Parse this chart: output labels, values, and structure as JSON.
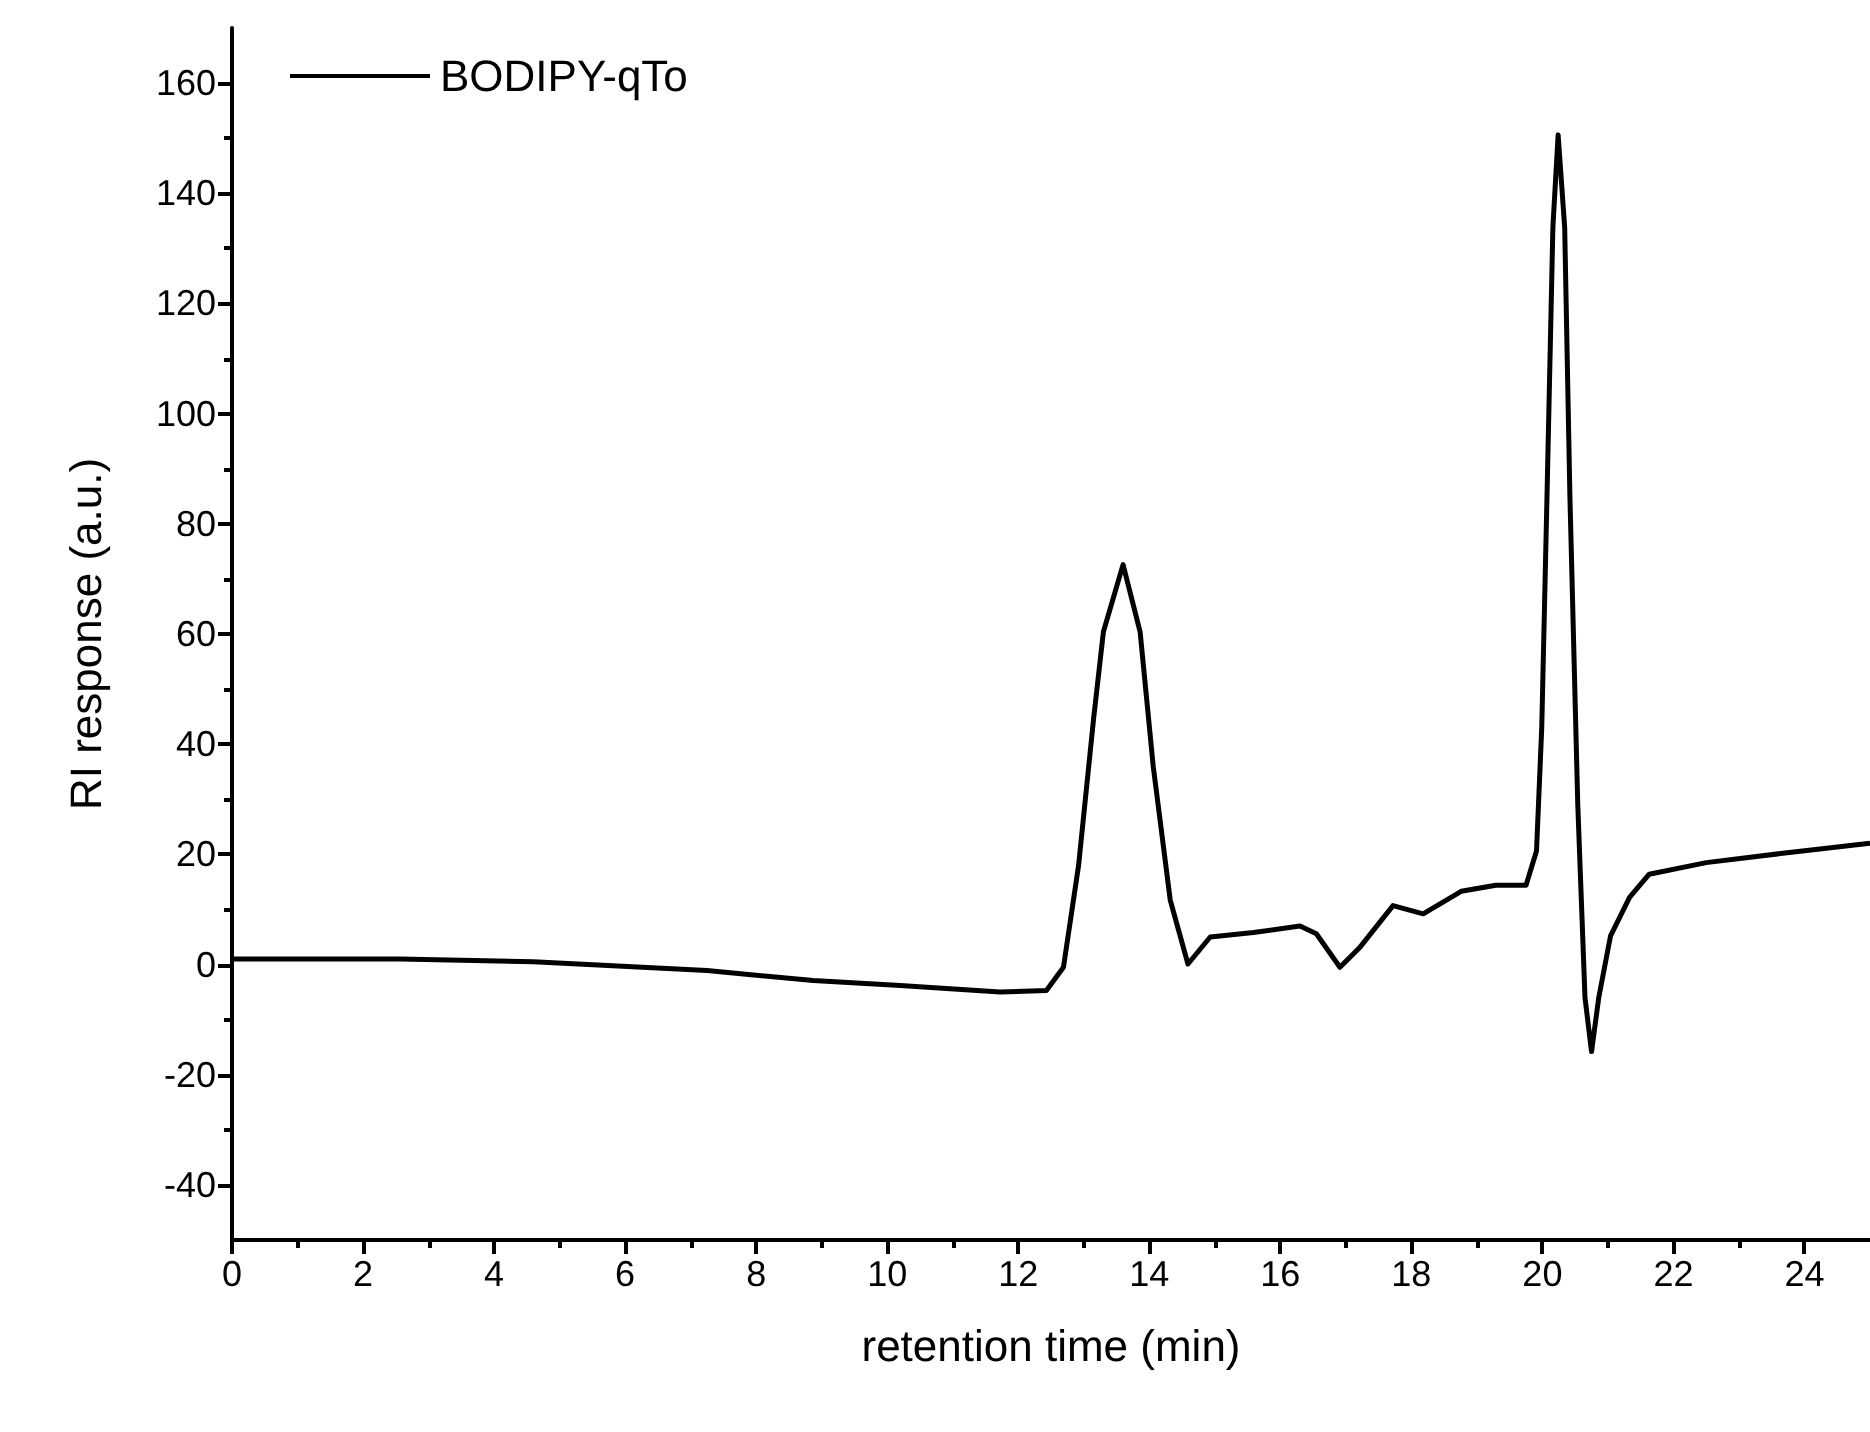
{
  "chart_data": {
    "type": "line",
    "xlabel": "retention time (min)",
    "ylabel": "RI response (a.u.)",
    "xlim": [
      0,
      25
    ],
    "xticks": [
      0,
      2,
      4,
      6,
      8,
      10,
      12,
      14,
      16,
      18,
      20,
      22,
      24
    ],
    "ylim": [
      -50,
      170
    ],
    "yticks": [
      -40,
      -20,
      0,
      20,
      40,
      60,
      80,
      100,
      120,
      140,
      160
    ],
    "grid": false,
    "legend": "top left",
    "marker": "none",
    "line_style": "solid",
    "series": [
      {
        "name": "BODIPY-qTo",
        "color": "#000000",
        "x": [
          0,
          2.56,
          4.6,
          7.25,
          8.87,
          10.2,
          11.72,
          12.43,
          12.69,
          12.92,
          13.15,
          13.3,
          13.6,
          13.86,
          14.06,
          14.32,
          14.59,
          14.93,
          15.59,
          16.3,
          16.55,
          16.91,
          17.22,
          17.72,
          18.18,
          18.76,
          19.29,
          19.75,
          19.91,
          19.99,
          20.07,
          20.16,
          20.24,
          20.34,
          20.42,
          20.54,
          20.65,
          20.75,
          20.86,
          21.04,
          21.33,
          21.63,
          22.5,
          23.67,
          25
        ],
        "values": [
          1,
          1,
          0.5,
          -1.1,
          -2.9,
          -3.8,
          -5,
          -4.7,
          -0.5,
          17.9,
          44.6,
          60.4,
          72.6,
          60.4,
          36,
          11.7,
          0.1,
          5,
          5.8,
          7,
          5.6,
          -0.5,
          3.2,
          10.7,
          9.2,
          13.3,
          14.4,
          14.4,
          20.6,
          43,
          84.9,
          133.8,
          150.6,
          133.8,
          84.9,
          29,
          -6,
          -15.8,
          -6,
          5.2,
          12.2,
          16.4,
          18.5,
          20.2,
          22
        ]
      }
    ]
  }
}
